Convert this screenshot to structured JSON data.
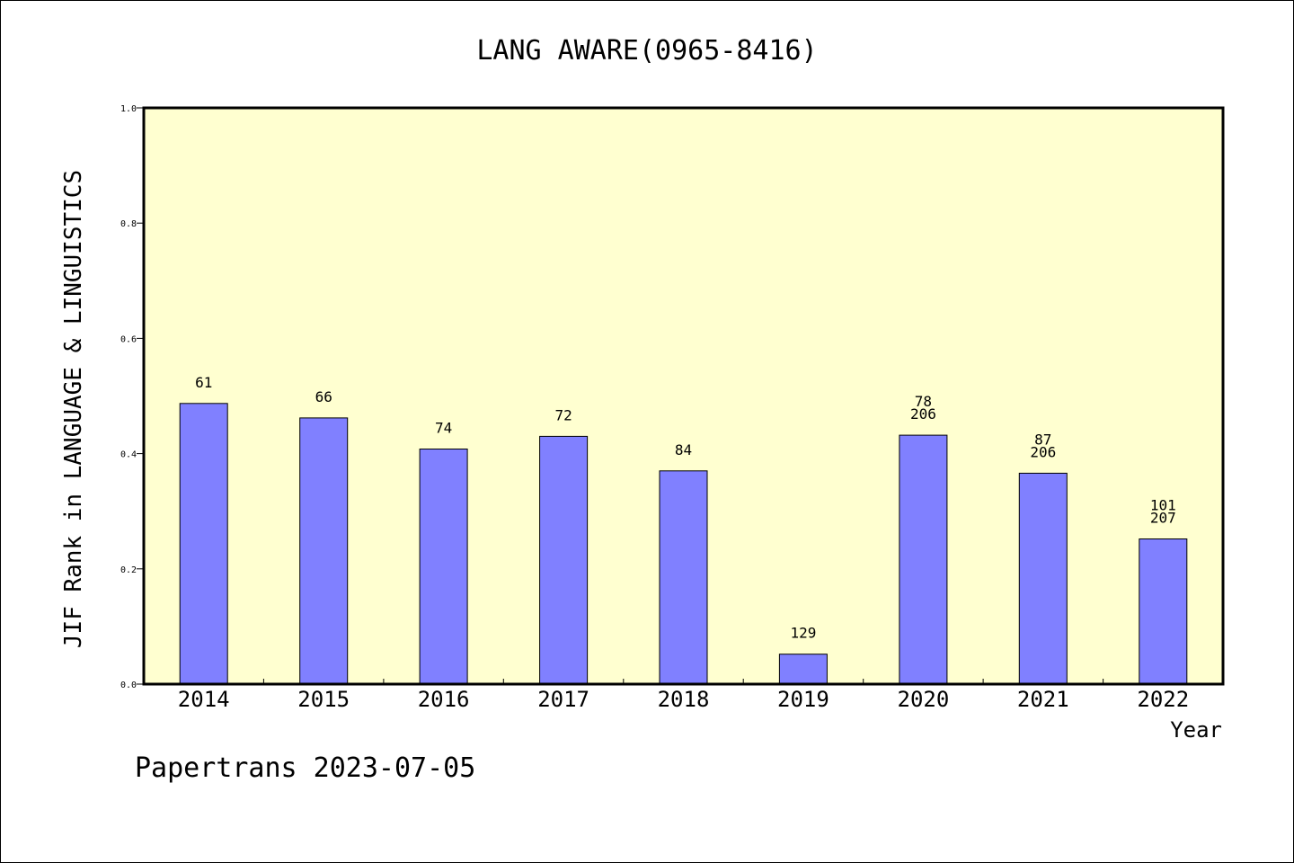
{
  "chart_data": {
    "type": "bar",
    "title": "LANG AWARE(0965-8416)",
    "ylabel": "JIF Rank in LANGUAGE & LINGUISTICS",
    "xlabel": "Year",
    "ylim": [
      0,
      1.0
    ],
    "yticks": [
      "0.0",
      "0.2",
      "0.4",
      "0.6",
      "0.8",
      "1.0"
    ],
    "categories": [
      "2014",
      "2015",
      "2016",
      "2017",
      "2018",
      "2019",
      "2020",
      "2021",
      "2022"
    ],
    "values": [
      0.487,
      0.462,
      0.408,
      0.43,
      0.37,
      0.052,
      0.432,
      0.366,
      0.252
    ],
    "bar_labels": [
      [
        "61"
      ],
      [
        "66"
      ],
      [
        "74"
      ],
      [
        "72"
      ],
      [
        "84"
      ],
      [
        "129"
      ],
      [
        "78",
        "206"
      ],
      [
        "87",
        "206"
      ],
      [
        "101",
        "207"
      ]
    ],
    "grid": false,
    "colors": {
      "plot_bg": "#ffffd0",
      "bar": "#8080ff",
      "bar_edge": "#000000"
    }
  },
  "footer": {
    "text": "Papertrans 2023-07-05"
  }
}
